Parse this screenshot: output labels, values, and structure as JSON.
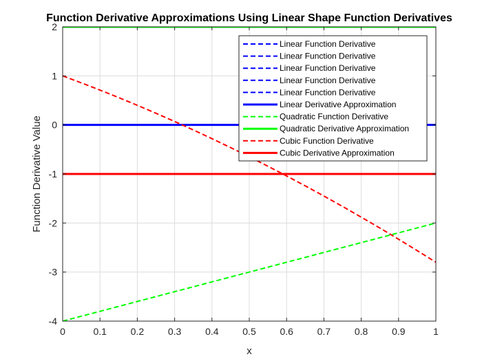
{
  "chart_data": {
    "type": "line",
    "title": "Function Derivative Approximations Using Linear Shape Function Derivatives",
    "xlabel": "x",
    "ylabel": "Function Derivative Value",
    "xlim": [
      0,
      1
    ],
    "ylim": [
      -4,
      2
    ],
    "xticks": [
      "0",
      "0.1",
      "0.2",
      "0.3",
      "0.4",
      "0.5",
      "0.6",
      "0.7",
      "0.8",
      "0.9",
      "1"
    ],
    "yticks": [
      "-4",
      "-3",
      "-2",
      "-1",
      "0",
      "1",
      "2"
    ],
    "grid": true,
    "legend_position": "top-right",
    "series": [
      {
        "name": "Linear Function Derivative",
        "color": "#0000ff",
        "style": "dashed",
        "x": [
          0,
          1
        ],
        "y": [
          0,
          0
        ]
      },
      {
        "name": "Linear Function Derivative",
        "color": "#0000ff",
        "style": "dashed",
        "x": [
          0,
          1
        ],
        "y": [
          0,
          0
        ]
      },
      {
        "name": "Linear Function Derivative",
        "color": "#0000ff",
        "style": "dashed",
        "x": [
          0,
          1
        ],
        "y": [
          0,
          0
        ]
      },
      {
        "name": "Linear Function Derivative",
        "color": "#0000ff",
        "style": "dashed",
        "x": [
          0,
          1
        ],
        "y": [
          0,
          0
        ]
      },
      {
        "name": "Linear Function Derivative",
        "color": "#0000ff",
        "style": "dashed",
        "x": [
          0,
          1
        ],
        "y": [
          0,
          0
        ]
      },
      {
        "name": "Linear Derivative Approximation",
        "color": "#0000ff",
        "style": "solid",
        "x": [
          0,
          1
        ],
        "y": [
          0,
          0
        ]
      },
      {
        "name": "Quadratic Function Derivative",
        "color": "#00ff00",
        "style": "dashed",
        "x": [
          0,
          1
        ],
        "y": [
          -4,
          -2
        ]
      },
      {
        "name": "Quadratic Derivative Approximation",
        "color": "#00ff00",
        "style": "solid",
        "x": [
          0,
          1
        ],
        "y": [
          2,
          2
        ]
      },
      {
        "name": "Cubic Function Derivative",
        "color": "#ff0000",
        "style": "dashed",
        "x": [
          0,
          0.05,
          0.1,
          0.15,
          0.2,
          0.25,
          0.3,
          0.35,
          0.4,
          0.45,
          0.5,
          0.55,
          0.6,
          0.65,
          0.7,
          0.75,
          0.8,
          0.85,
          0.9,
          0.95,
          1
        ],
        "y": [
          1,
          0.8575,
          0.71,
          0.5575,
          0.4,
          0.2375,
          0.07,
          -0.1025,
          -0.28,
          -0.4625,
          -0.65,
          -0.8425,
          -1.04,
          -1.2425,
          -1.45,
          -1.6625,
          -1.88,
          -2.1025,
          -2.33,
          -2.5625,
          -2.8
        ]
      },
      {
        "name": "Cubic Derivative Approximation",
        "color": "#ff0000",
        "style": "solid",
        "x": [
          0,
          1
        ],
        "y": [
          -1,
          -1
        ]
      }
    ]
  }
}
